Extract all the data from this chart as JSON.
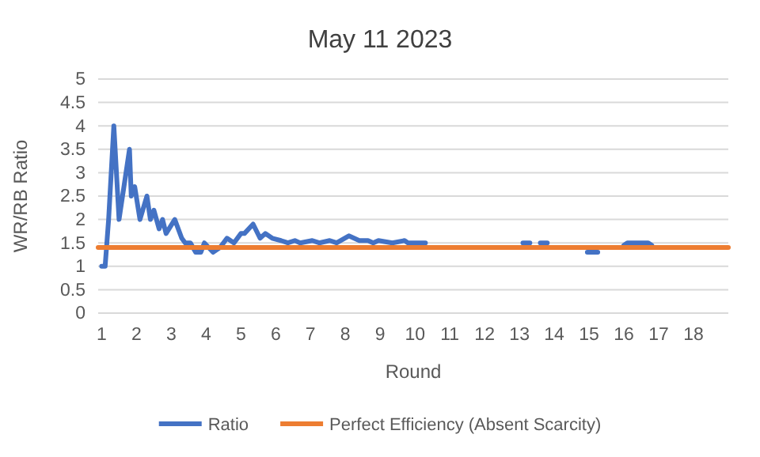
{
  "chart_data": {
    "type": "line",
    "title": "May 11 2023",
    "xlabel": "Round",
    "ylabel": "WR/RB Ratio",
    "series": [
      {
        "name": "Ratio",
        "color": "#4472c4",
        "x": [
          1,
          1.1,
          1.2,
          1.35,
          1.5,
          1.8,
          1.85,
          1.95,
          2.1,
          2.3,
          2.4,
          2.5,
          2.65,
          2.75,
          2.85,
          3.1,
          3.3,
          3.4,
          3.55,
          3.7,
          3.85,
          3.95,
          4.2,
          4.4,
          4.6,
          4.8,
          5,
          5.1,
          5.35,
          5.55,
          5.7,
          5.9,
          6.15,
          6.35,
          6.55,
          6.7,
          7.05,
          7.25,
          7.55,
          7.75,
          8.1,
          8.4,
          8.65,
          8.8,
          8.95,
          9.35,
          9.7,
          9.8,
          10.3,
          11,
          13.1,
          13.3,
          13.45,
          13.6,
          13.8,
          14.5,
          14.95,
          15.25,
          15.6,
          16,
          16.1,
          16.7,
          16.8
        ],
        "values": [
          1,
          1,
          2,
          4,
          2,
          3.5,
          2.5,
          2.7,
          2,
          2.5,
          2,
          2.2,
          1.8,
          2,
          1.7,
          2,
          1.6,
          1.5,
          1.5,
          1.3,
          1.3,
          1.5,
          1.3,
          1.4,
          1.6,
          1.5,
          1.7,
          1.7,
          1.9,
          1.6,
          1.7,
          1.6,
          1.55,
          1.5,
          1.55,
          1.5,
          1.55,
          1.5,
          1.55,
          1.5,
          1.65,
          1.55,
          1.55,
          1.5,
          1.55,
          1.5,
          1.55,
          1.5,
          1.5,
          null,
          1.5,
          1.5,
          null,
          1.5,
          1.5,
          null,
          1.3,
          1.3,
          null,
          1.45,
          1.5,
          1.5,
          1.45
        ]
      },
      {
        "name": "Perfect Efficiency (Absent Scarcity)",
        "color": "#ed7d31",
        "x": [
          0.9,
          19
        ],
        "values": [
          1.4,
          1.4
        ]
      }
    ],
    "xlim": [
      0.9,
      19
    ],
    "xticks": [
      1,
      2,
      3,
      4,
      5,
      6,
      7,
      8,
      9,
      10,
      11,
      12,
      13,
      14,
      15,
      16,
      17,
      18
    ],
    "ylim": [
      0,
      5
    ],
    "yticks": [
      0,
      0.5,
      1,
      1.5,
      2,
      2.5,
      3,
      3.5,
      4,
      4.5,
      5
    ],
    "grid": "y",
    "legend": "bottom",
    "marker": "none",
    "line_style": "solid"
  }
}
